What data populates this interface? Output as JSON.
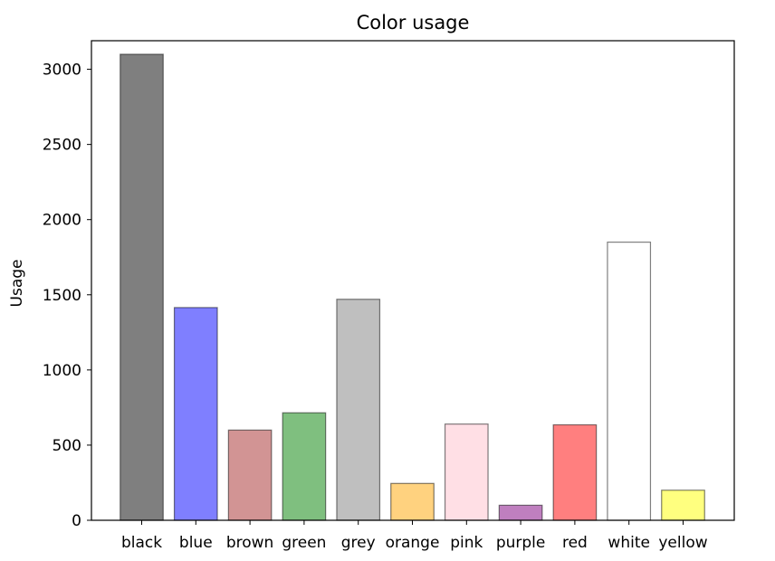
{
  "chart_data": {
    "type": "bar",
    "title": "Color usage",
    "xlabel": "",
    "ylabel": "Usage",
    "ylim": [
      0,
      3190
    ],
    "yticks": [
      0,
      500,
      1000,
      1500,
      2000,
      2500,
      3000
    ],
    "grid": false,
    "categories": [
      "black",
      "blue",
      "brown",
      "green",
      "grey",
      "orange",
      "pink",
      "purple",
      "red",
      "white",
      "yellow"
    ],
    "values": [
      3100,
      1415,
      600,
      715,
      1470,
      245,
      640,
      100,
      635,
      1850,
      200
    ],
    "colors": [
      "#000000",
      "#0000ff",
      "#a52a2a",
      "#008000",
      "#808080",
      "#ffa500",
      "#ffc0cb",
      "#800080",
      "#ff0000",
      "#ffffff",
      "#ffff00"
    ],
    "bar_alpha": 0.5,
    "edge_color": "#000000"
  }
}
